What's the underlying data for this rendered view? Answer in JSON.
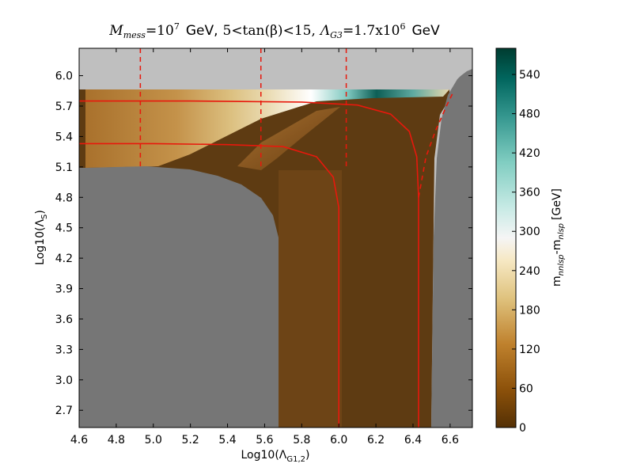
{
  "chart_data": {
    "type": "heatmap",
    "title": "M_mess=10^7  GeV, 5<tan(β)<15, Λ_G3=1.7x10^6  GeV",
    "title_parts": {
      "m_sym": "M",
      "m_sub": "mess",
      "eq1": "=10",
      "exp7": "7",
      "gev1": "GeV,",
      "tb": "5<tan(β)<15,",
      "lam": "Λ",
      "lam_sub": "G3",
      "eq2": "=1.7x10",
      "exp6": "6",
      "gev2": "GeV"
    },
    "xlabel": "Log10(Λ_G1,2)",
    "xlabel_parts": {
      "pre": "Log10(Λ",
      "sub": "G1,2",
      "post": ")"
    },
    "ylabel": "Log10(Λ_S)",
    "ylabel_parts": {
      "pre": "Log10(Λ",
      "sub": "S",
      "post": ")"
    },
    "xlim": [
      4.6,
      6.72
    ],
    "ylim": [
      2.53,
      6.27
    ],
    "x_ticks": [
      "4.6",
      "4.8",
      "5.0",
      "5.2",
      "5.4",
      "5.6",
      "5.8",
      "6.0",
      "6.2",
      "6.4",
      "6.6"
    ],
    "y_ticks": [
      "2.7",
      "3.0",
      "3.3",
      "3.6",
      "3.9",
      "4.2",
      "4.5",
      "4.8",
      "5.1",
      "5.4",
      "5.7",
      "6.0"
    ],
    "colorbar": {
      "label": "m_nnlsp-m_nlsp [GeV]",
      "label_parts": {
        "a": "m",
        "a_sub": "nnlsp",
        "mid": "-m",
        "b_sub": "nlsp",
        "unit": "[GeV]"
      },
      "range": [
        0,
        580
      ],
      "ticks": [
        "0",
        "60",
        "120",
        "180",
        "240",
        "300",
        "360",
        "420",
        "480",
        "540"
      ],
      "colormap": "BrBG"
    },
    "vertical_dashed_lines_x": [
      4.93,
      5.58,
      6.04
    ],
    "red_contours": [
      {
        "style": "solid",
        "x": [
          4.6,
          5.0,
          5.4,
          5.7,
          5.88,
          5.97,
          6.0,
          6.0
        ],
        "y": [
          5.33,
          5.33,
          5.32,
          5.3,
          5.2,
          5.0,
          4.7,
          2.53
        ]
      },
      {
        "style": "solid",
        "x": [
          4.6,
          5.2,
          5.8,
          6.1,
          6.28,
          6.38,
          6.42,
          6.43,
          6.43
        ],
        "y": [
          5.75,
          5.75,
          5.74,
          5.71,
          5.62,
          5.45,
          5.2,
          4.8,
          2.53
        ]
      },
      {
        "style": "dashed",
        "x": [
          6.43,
          6.47,
          6.52,
          6.58,
          6.62
        ],
        "y": [
          4.8,
          5.2,
          5.45,
          5.7,
          5.85
        ]
      }
    ],
    "regions": {
      "upper_excluded_above_y": 5.84,
      "lower_left_excluded": {
        "x_max": 5.68,
        "y_max": 5.1
      },
      "right_excluded_from_x": 6.49,
      "colors": {
        "light_gray": "#bfbfbf",
        "dark_gray": "#767676",
        "contour": "#e8180c"
      }
    },
    "grid": false,
    "legend": "none"
  }
}
